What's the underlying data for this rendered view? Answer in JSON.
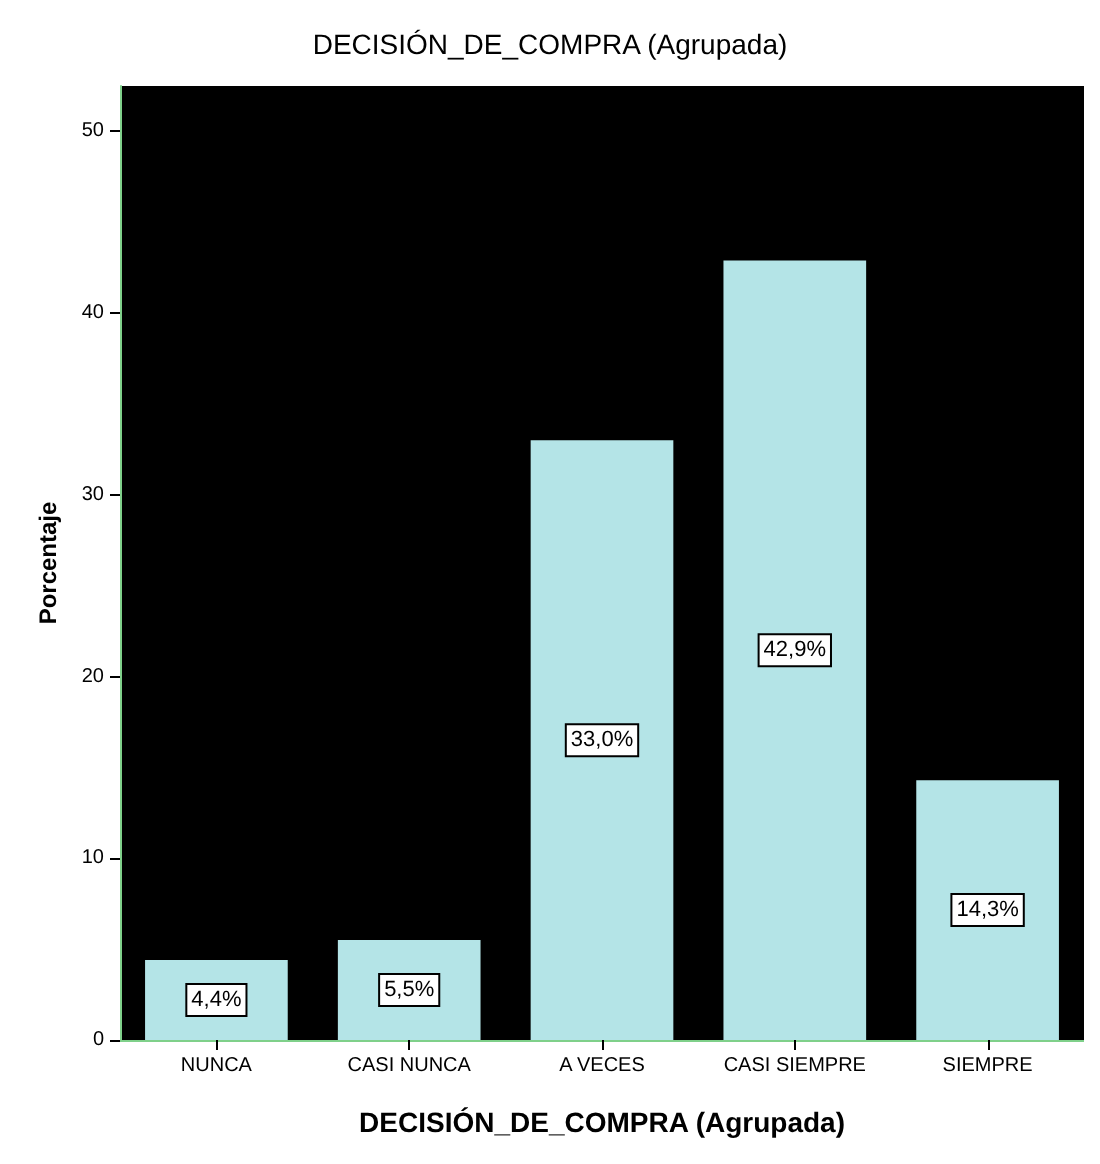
{
  "chart_data": {
    "type": "bar",
    "title": "DECISIÓN_DE_COMPRA (Agrupada)",
    "xlabel": "DECISIÓN_DE_COMPRA (Agrupada)",
    "ylabel": "Porcentaje",
    "categories": [
      "NUNCA",
      "CASI NUNCA",
      "A VECES",
      "CASI SIEMPRE",
      "SIEMPRE"
    ],
    "values": [
      4.4,
      5.5,
      33.0,
      42.9,
      14.3
    ],
    "value_labels": [
      "4,4%",
      "5,5%",
      "33,0%",
      "42,9%",
      "14,3%"
    ],
    "color": "#b4e4e7",
    "ylim": [
      0,
      52.5
    ],
    "yticks": [
      0,
      10,
      20,
      30,
      40,
      50
    ],
    "grid": false
  }
}
